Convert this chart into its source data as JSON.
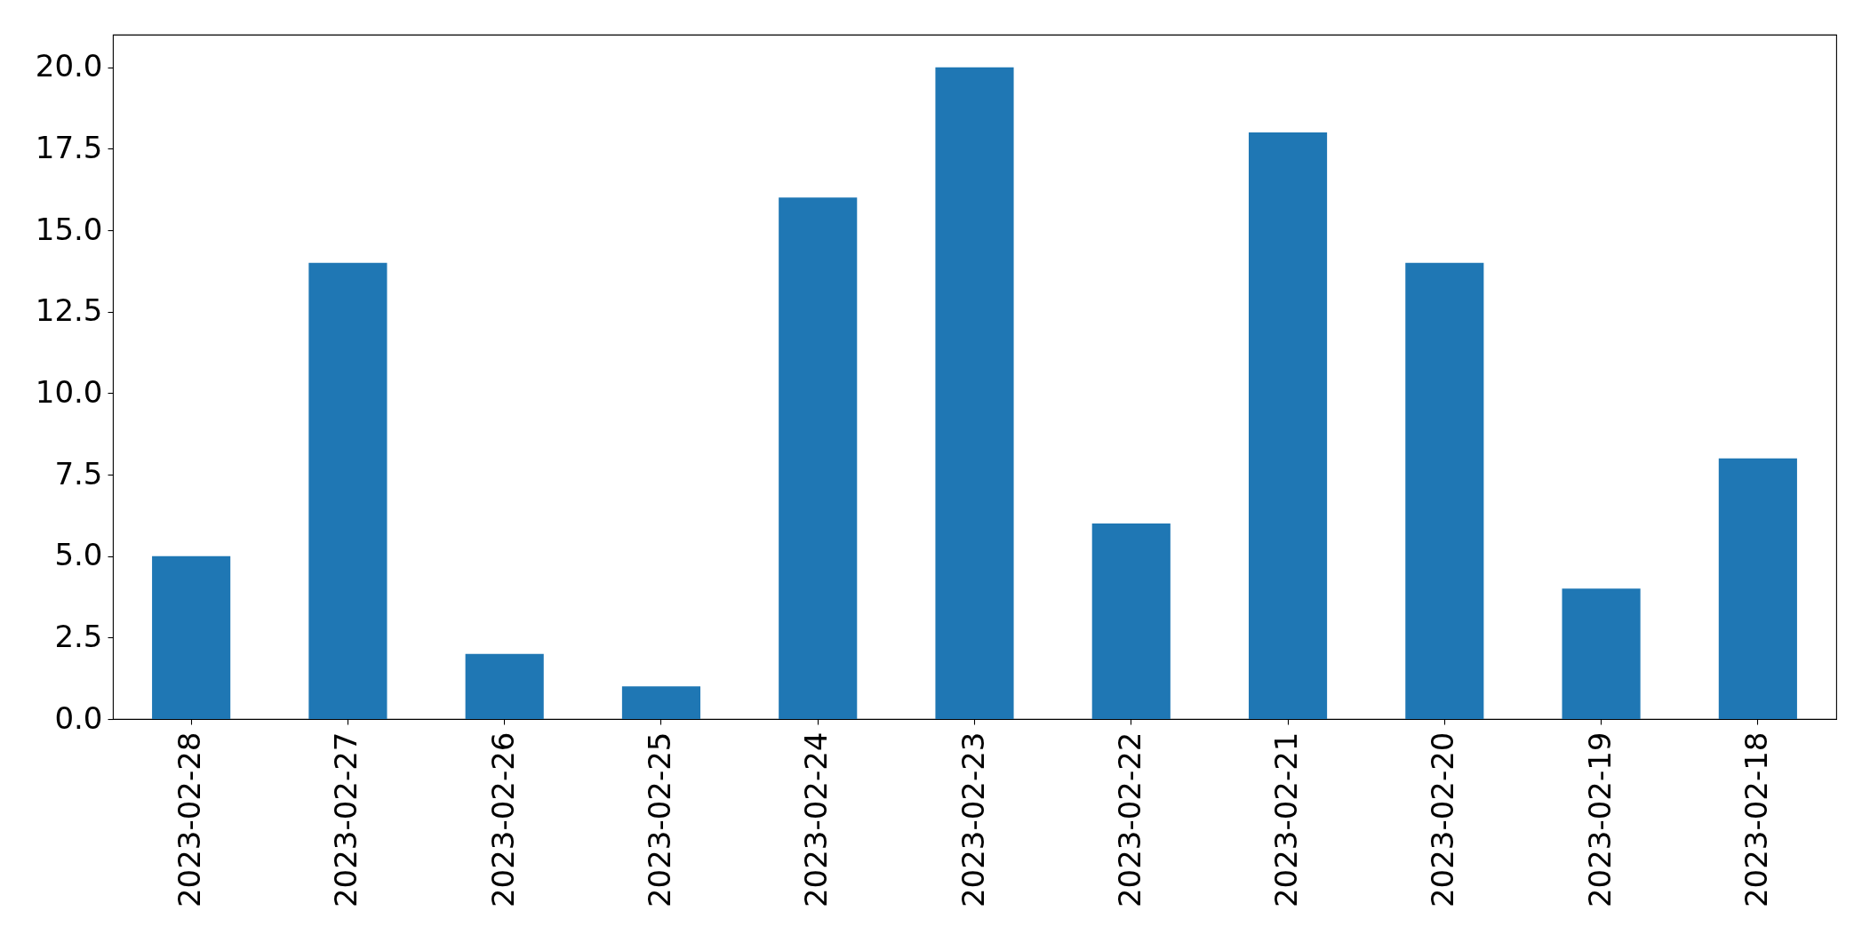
{
  "chart_data": {
    "type": "bar",
    "categories": [
      "2023-02-28",
      "2023-02-27",
      "2023-02-26",
      "2023-02-25",
      "2023-02-24",
      "2023-02-23",
      "2023-02-22",
      "2023-02-21",
      "2023-02-20",
      "2023-02-19",
      "2023-02-18"
    ],
    "values": [
      5,
      14,
      2,
      1,
      16,
      20,
      6,
      18,
      14,
      4,
      8
    ],
    "color": "#1f77b4",
    "ylim": [
      0,
      21
    ],
    "yticks": [
      {
        "value": 0,
        "label": "0.0"
      },
      2.5,
      {
        "value": 5,
        "label": "5.0"
      },
      7.5,
      {
        "value": 10,
        "label": "10.0"
      },
      12.5,
      {
        "value": 15,
        "label": "15.0"
      },
      17.5,
      {
        "value": 20,
        "label": "20.0"
      }
    ],
    "grid": false
  }
}
